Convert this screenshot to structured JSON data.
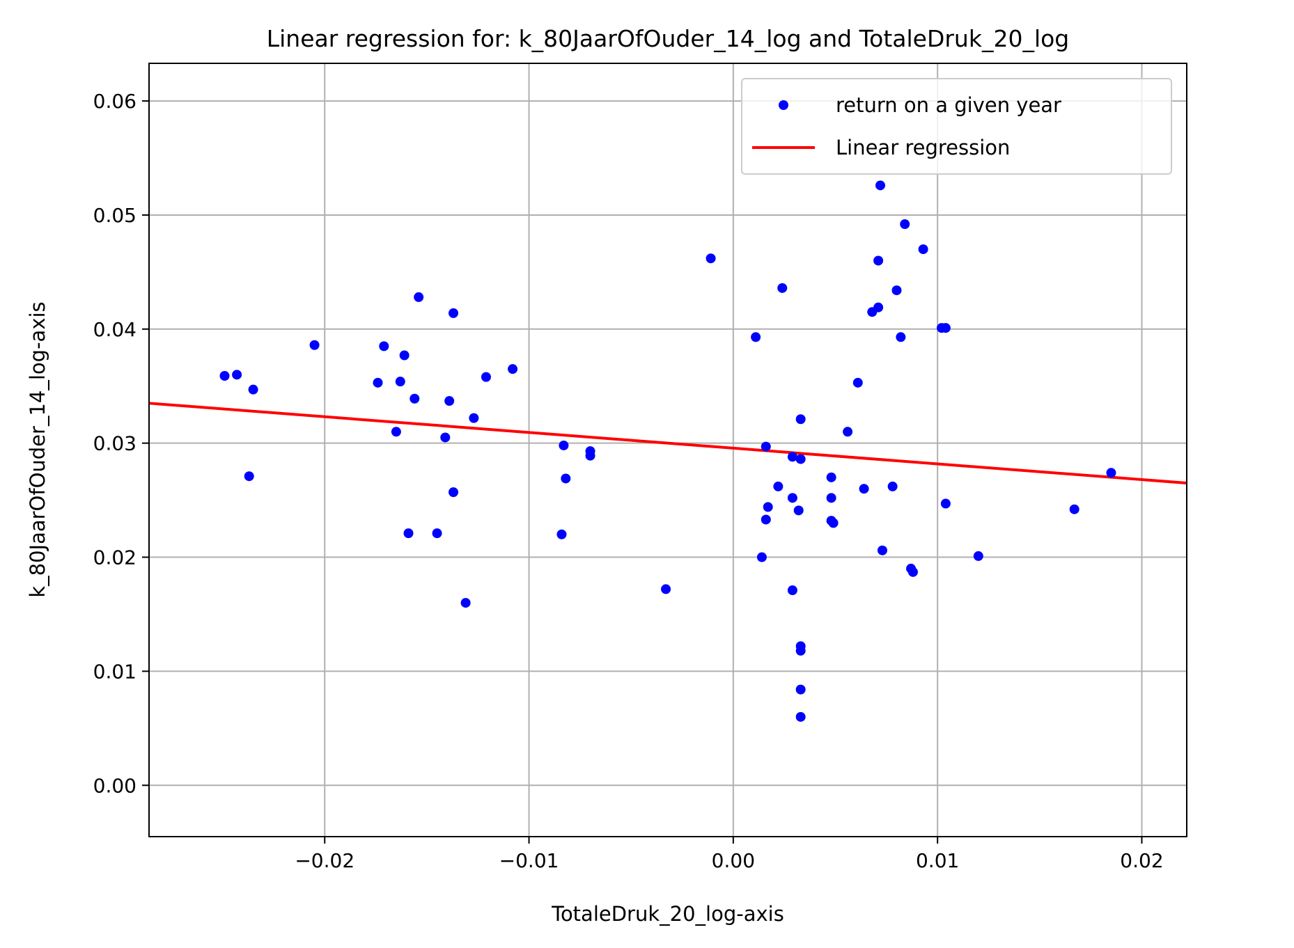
{
  "chart_data": {
    "type": "scatter",
    "title": "Linear regression for: k_80JaarOfOuder_14_log and TotaleDruk_20_log",
    "xlabel": "TotaleDruk_20_log-axis",
    "ylabel": "k_80JaarOfOuder_14_log-axis",
    "xlim": [
      -0.0286,
      0.0222
    ],
    "ylim": [
      -0.0045,
      0.0633
    ],
    "xticks": [
      -0.02,
      -0.01,
      0.0,
      0.01,
      0.02
    ],
    "xtick_labels": [
      "−0.02",
      "−0.01",
      "0.00",
      "0.01",
      "0.02"
    ],
    "yticks": [
      0.0,
      0.01,
      0.02,
      0.03,
      0.04,
      0.05,
      0.06
    ],
    "ytick_labels": [
      "0.00",
      "0.01",
      "0.02",
      "0.03",
      "0.04",
      "0.05",
      "0.06"
    ],
    "grid": true,
    "legend": {
      "position": "top-right",
      "entries": [
        "return on a given year",
        "Linear regression"
      ]
    },
    "series": [
      {
        "name": "return on a given year",
        "kind": "scatter",
        "color": "#0000ff",
        "points": [
          [
            -0.0249,
            0.0359
          ],
          [
            -0.0243,
            0.036
          ],
          [
            -0.0237,
            0.0271
          ],
          [
            -0.0235,
            0.0347
          ],
          [
            -0.0205,
            0.0386
          ],
          [
            -0.0174,
            0.0353
          ],
          [
            -0.0171,
            0.0385
          ],
          [
            -0.0165,
            0.031
          ],
          [
            -0.0163,
            0.0354
          ],
          [
            -0.0161,
            0.0377
          ],
          [
            -0.0159,
            0.0221
          ],
          [
            -0.0156,
            0.0339
          ],
          [
            -0.0154,
            0.0428
          ],
          [
            -0.0145,
            0.0221
          ],
          [
            -0.0141,
            0.0305
          ],
          [
            -0.0139,
            0.0337
          ],
          [
            -0.0137,
            0.0414
          ],
          [
            -0.0137,
            0.0257
          ],
          [
            -0.0131,
            0.016
          ],
          [
            -0.0127,
            0.0322
          ],
          [
            -0.0121,
            0.0358
          ],
          [
            -0.0108,
            0.0365
          ],
          [
            -0.0083,
            0.0298
          ],
          [
            -0.0082,
            0.0269
          ],
          [
            -0.0084,
            0.022
          ],
          [
            -0.007,
            0.0289
          ],
          [
            -0.007,
            0.0293
          ],
          [
            -0.0033,
            0.0172
          ],
          [
            -0.0011,
            0.0462
          ],
          [
            0.0011,
            0.0393
          ],
          [
            0.0014,
            0.02
          ],
          [
            0.0016,
            0.0297
          ],
          [
            0.0016,
            0.0233
          ],
          [
            0.0017,
            0.0244
          ],
          [
            0.0022,
            0.0262
          ],
          [
            0.0024,
            0.0436
          ],
          [
            0.0029,
            0.0288
          ],
          [
            0.0029,
            0.0252
          ],
          [
            0.0029,
            0.0171
          ],
          [
            0.0032,
            0.0241
          ],
          [
            0.0033,
            0.0286
          ],
          [
            0.0033,
            0.0321
          ],
          [
            0.0033,
            0.0122
          ],
          [
            0.0033,
            0.0118
          ],
          [
            0.0033,
            0.0084
          ],
          [
            0.0033,
            0.006
          ],
          [
            0.0048,
            0.0252
          ],
          [
            0.0048,
            0.027
          ],
          [
            0.0048,
            0.0232
          ],
          [
            0.0049,
            0.023
          ],
          [
            0.0056,
            0.031
          ],
          [
            0.0061,
            0.0353
          ],
          [
            0.0064,
            0.026
          ],
          [
            0.0068,
            0.0415
          ],
          [
            0.0071,
            0.0419
          ],
          [
            0.0071,
            0.046
          ],
          [
            0.0072,
            0.0526
          ],
          [
            0.0073,
            0.0206
          ],
          [
            0.0078,
            0.0262
          ],
          [
            0.008,
            0.0434
          ],
          [
            0.0082,
            0.0393
          ],
          [
            0.0084,
            0.0492
          ],
          [
            0.0087,
            0.019
          ],
          [
            0.0088,
            0.0187
          ],
          [
            0.0093,
            0.047
          ],
          [
            0.0102,
            0.0401
          ],
          [
            0.0104,
            0.0401
          ],
          [
            0.0104,
            0.0247
          ],
          [
            0.012,
            0.0201
          ],
          [
            0.0167,
            0.0242
          ],
          [
            0.0185,
            0.0274
          ]
        ]
      },
      {
        "name": "Linear regression",
        "kind": "line",
        "color": "#ff0000",
        "points": [
          [
            -0.0286,
            0.0335
          ],
          [
            0.0222,
            0.0265
          ]
        ]
      }
    ]
  }
}
